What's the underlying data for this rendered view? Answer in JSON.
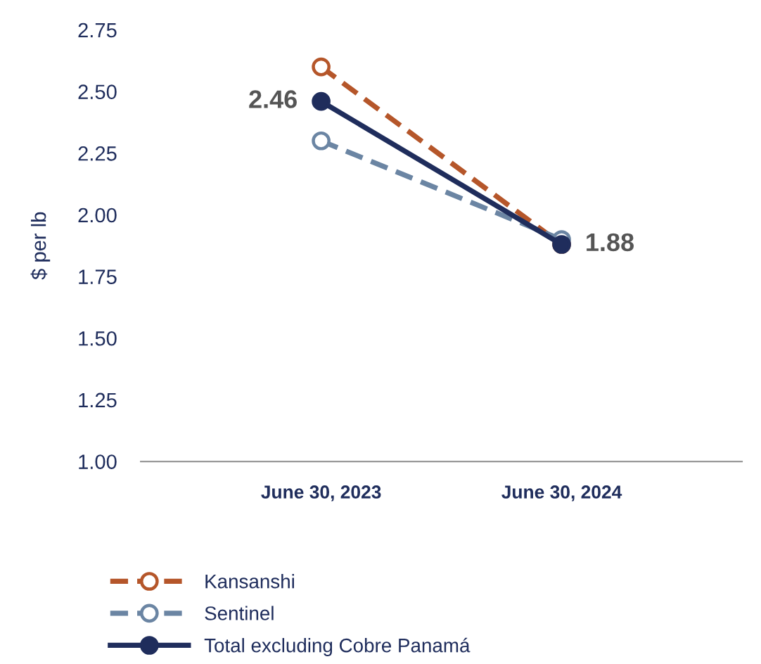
{
  "chart_data": {
    "type": "line",
    "ylabel": "$ per lb",
    "categories": [
      "June 30, 2023",
      "June 30, 2024"
    ],
    "ylim": [
      1.0,
      2.75
    ],
    "yticks": [
      {
        "value": 1.0,
        "label": "1.00"
      },
      {
        "value": 1.25,
        "label": "1.25"
      },
      {
        "value": 1.5,
        "label": "1.50"
      },
      {
        "value": 1.75,
        "label": "1.75"
      },
      {
        "value": 2.0,
        "label": "2.00"
      },
      {
        "value": 2.25,
        "label": "2.25"
      },
      {
        "value": 2.5,
        "label": "2.50"
      },
      {
        "value": 2.75,
        "label": "2.75"
      }
    ],
    "grid": false,
    "legend": "bottom",
    "marker": "circle",
    "series": [
      {
        "name": "Kansanshi",
        "color": "#b5562a",
        "values": [
          2.6,
          1.88
        ],
        "line_style": "dashed"
      },
      {
        "name": "Sentinel",
        "color": "#6b85a3",
        "values": [
          2.3,
          1.9
        ],
        "line_style": "dashed"
      },
      {
        "name": "Total excluding Cobre Panamá",
        "color": "#1f2d5c",
        "values": [
          2.46,
          1.88
        ],
        "line_style": "solid",
        "value_labels": [
          "2.46",
          "1.88"
        ]
      }
    ]
  }
}
